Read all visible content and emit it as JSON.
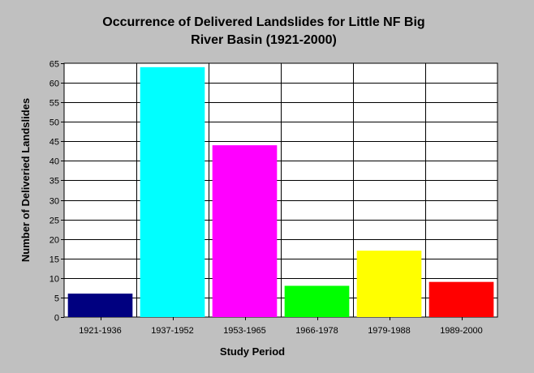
{
  "colors": {
    "background": "#c0c0c0",
    "plot_background": "#ffffff",
    "grid": "#000000"
  },
  "chart_data": {
    "type": "bar",
    "title_line1": "Occurrence of Delivered Landslides for Little NF Big",
    "title_line2": "River Basin (1921-2000)",
    "xlabel": "Study Period",
    "ylabel": "Number of Deliveried Landslides",
    "categories": [
      "1921-1936",
      "1937-1952",
      "1953-1965",
      "1966-1978",
      "1979-1988",
      "1989-2000"
    ],
    "values": [
      6,
      64,
      44,
      8,
      17,
      9
    ],
    "bar_colors": [
      "#000080",
      "#00ffff",
      "#ff00ff",
      "#00ff00",
      "#ffff00",
      "#ff0000"
    ],
    "ylim": [
      0,
      65
    ],
    "yticks": [
      0,
      5,
      10,
      15,
      20,
      25,
      30,
      35,
      40,
      45,
      50,
      55,
      60,
      65
    ],
    "grid": true,
    "legend": false
  }
}
